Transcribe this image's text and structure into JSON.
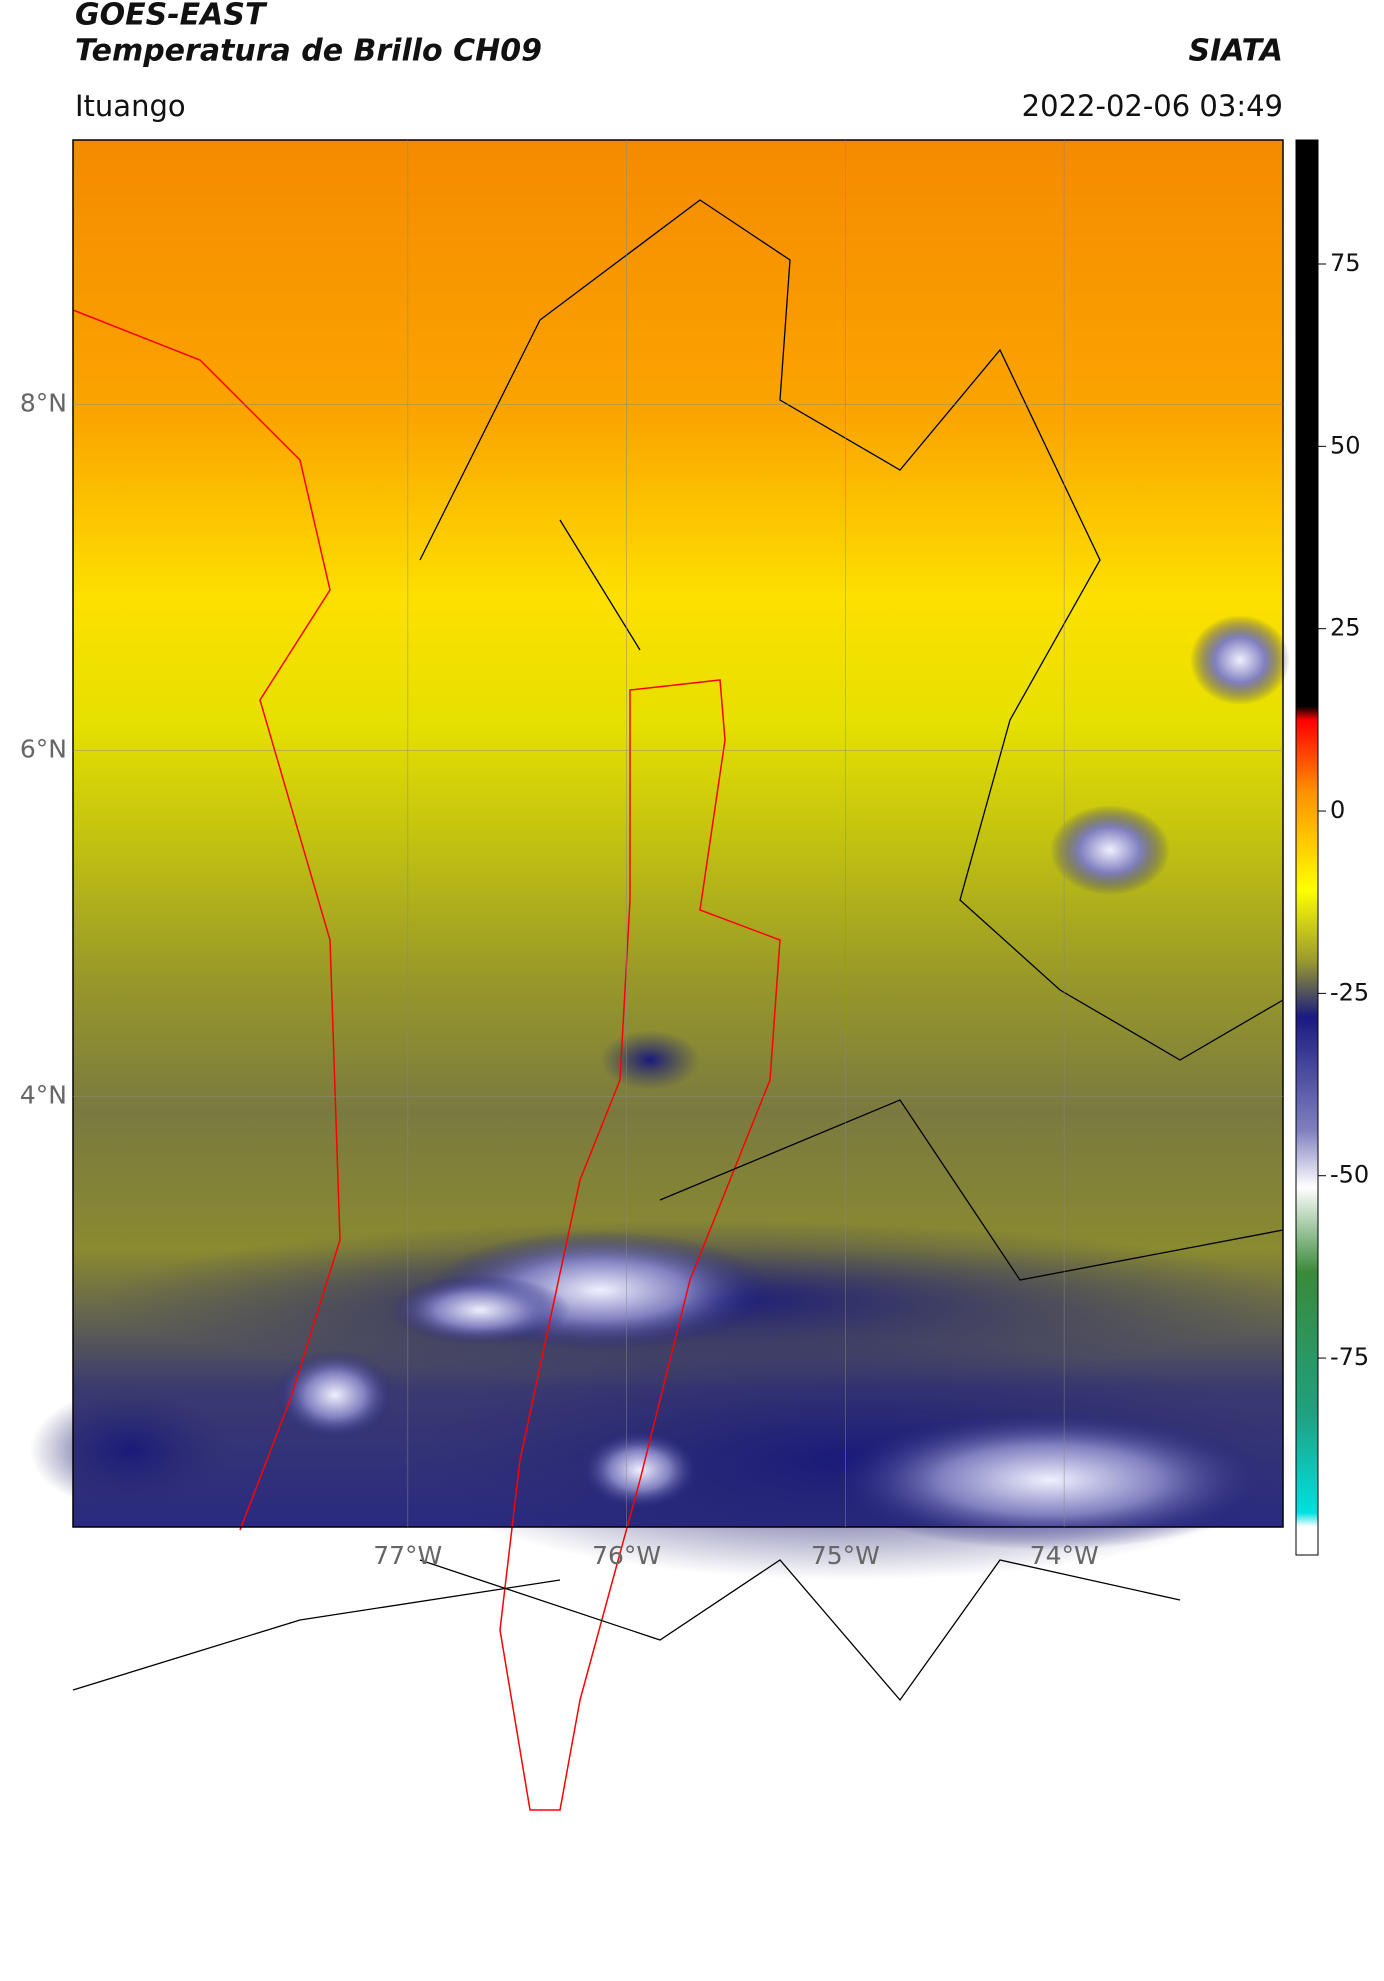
{
  "header": {
    "title": "GOES-EAST",
    "subtitle": "Temperatura de Brillo CH09",
    "source": "SIATA",
    "place": "Ituango",
    "datetime": "2022-02-06 03:49"
  },
  "map": {
    "lat_range": [
      1.51,
      9.53
    ],
    "lon_range": [
      -78.53,
      -73.0
    ],
    "lat_ticks": [
      {
        "value": 8,
        "label": "8°N"
      },
      {
        "value": 6,
        "label": "6°N"
      },
      {
        "value": 4,
        "label": "4°N"
      }
    ],
    "lon_ticks": [
      {
        "value": -77,
        "label": "77°W"
      },
      {
        "value": -76,
        "label": "76°W"
      },
      {
        "value": -75,
        "label": "75°W"
      },
      {
        "value": -74,
        "label": "74°W"
      }
    ]
  },
  "colorbar": {
    "range": [
      -102,
      92
    ],
    "ticks": [
      75,
      50,
      25,
      0,
      -25,
      -50,
      -75
    ]
  }
}
